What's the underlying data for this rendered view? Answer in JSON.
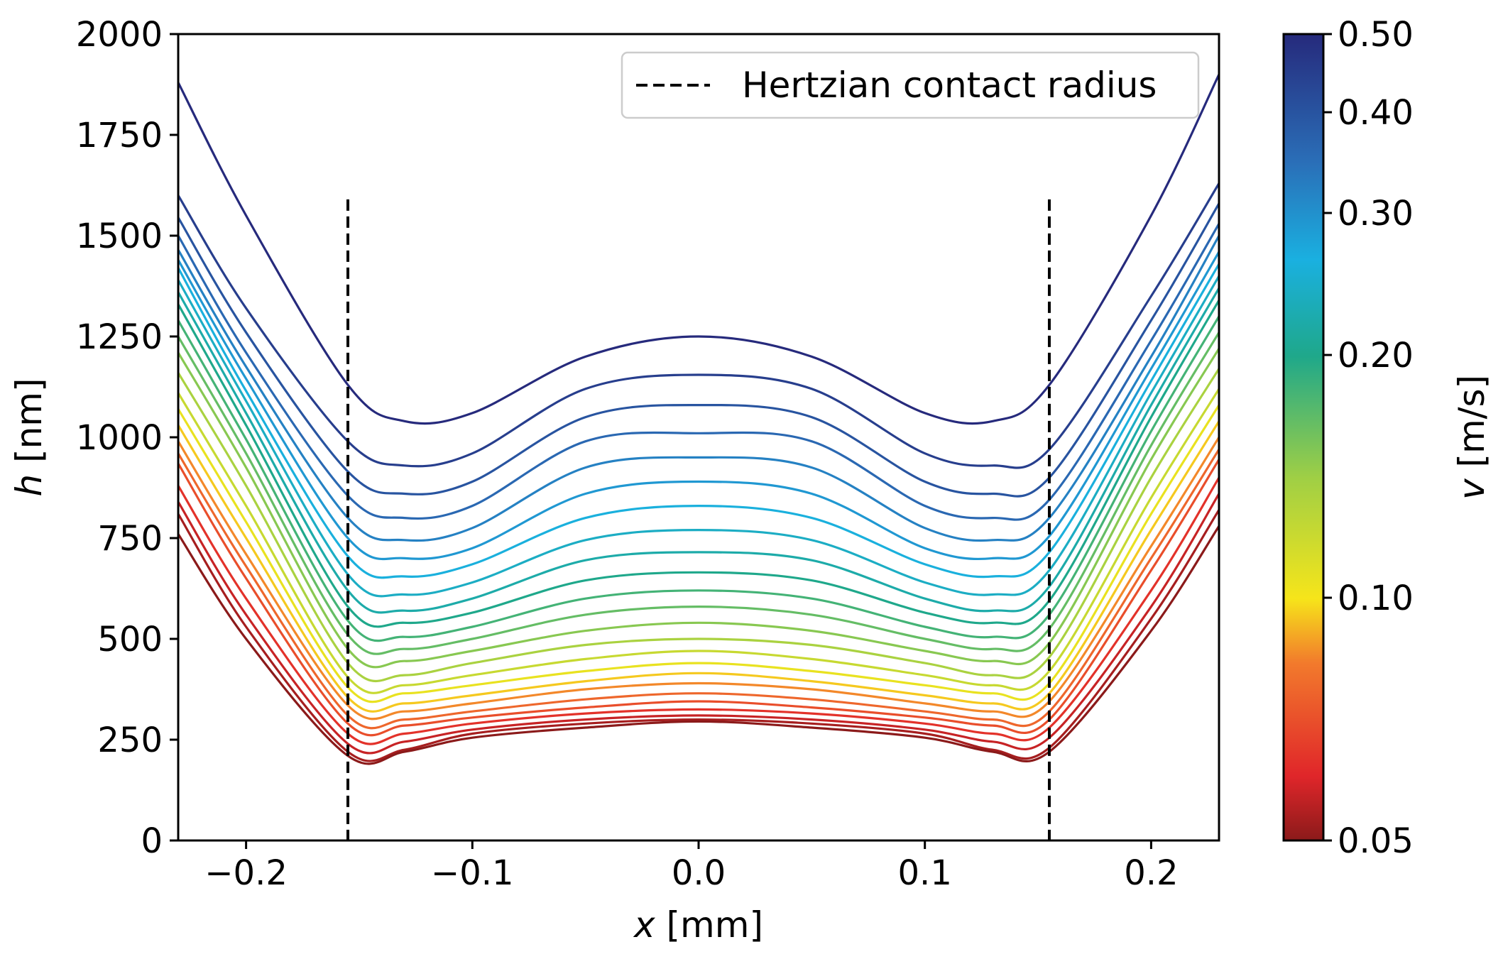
{
  "chart_data": {
    "type": "line",
    "xlabel_var": "x",
    "xlabel_unit": " [mm]",
    "ylabel_var": "h",
    "ylabel_unit": " [nm]",
    "xlim": [
      -0.23,
      0.23
    ],
    "ylim": [
      0,
      2000
    ],
    "x_ticks": [
      -0.2,
      -0.1,
      0.0,
      0.1,
      0.2
    ],
    "x_tick_labels": [
      "−0.2",
      "−0.1",
      "0.0",
      "0.1",
      "0.2"
    ],
    "y_ticks": [
      0,
      250,
      500,
      750,
      1000,
      1250,
      1500,
      1750,
      2000
    ],
    "y_tick_labels": [
      "0",
      "250",
      "500",
      "750",
      "1000",
      "1250",
      "1500",
      "1750",
      "2000"
    ],
    "legend": {
      "entry": "Hertzian contact radius",
      "style": "dashed",
      "position": "top-right"
    },
    "hertzian_radius_x": [
      -0.155,
      0.155
    ],
    "hertzian_line_top": 1590,
    "colorbar": {
      "label_var": "v",
      "label_unit": " [m/s]",
      "scale": "log",
      "range": [
        0.05,
        0.5
      ],
      "ticks": [
        0.05,
        0.1,
        0.2,
        0.3,
        0.4,
        0.5
      ],
      "tick_labels": [
        "0.05",
        "0.10",
        "0.20",
        "0.30",
        "0.40",
        "0.50"
      ],
      "colormap": "jet-like (red = low v, dark blue = high v)"
    },
    "series_profile_x": [
      -0.23,
      -0.2,
      -0.155,
      -0.13,
      -0.1,
      -0.05,
      0.0,
      0.05,
      0.1,
      0.13,
      0.155,
      0.2,
      0.23
    ],
    "series": [
      {
        "v": 0.5,
        "values": [
          1880,
          1550,
          1130,
          1040,
          1060,
          1200,
          1250,
          1200,
          1060,
          1040,
          1130,
          1550,
          1900
        ]
      },
      {
        "v": 0.45,
        "values": [
          1600,
          1320,
          990,
          930,
          960,
          1120,
          1155,
          1120,
          960,
          930,
          970,
          1350,
          1630
        ]
      },
      {
        "v": 0.4,
        "values": [
          1545,
          1260,
          915,
          860,
          890,
          1050,
          1080,
          1050,
          890,
          860,
          900,
          1290,
          1580
        ]
      },
      {
        "v": 0.36,
        "values": [
          1500,
          1210,
          855,
          800,
          830,
          990,
          1010,
          990,
          830,
          800,
          845,
          1240,
          1530
        ]
      },
      {
        "v": 0.32,
        "values": [
          1465,
          1175,
          800,
          745,
          775,
          925,
          950,
          925,
          775,
          745,
          800,
          1200,
          1500
        ]
      },
      {
        "v": 0.29,
        "values": [
          1440,
          1145,
          750,
          700,
          725,
          860,
          890,
          860,
          725,
          700,
          755,
          1170,
          1460
        ]
      },
      {
        "v": 0.26,
        "values": [
          1420,
          1115,
          705,
          655,
          685,
          800,
          830,
          800,
          685,
          655,
          715,
          1140,
          1430
        ]
      },
      {
        "v": 0.24,
        "values": [
          1390,
          1090,
          660,
          610,
          640,
          745,
          770,
          745,
          640,
          610,
          670,
          1110,
          1400
        ]
      },
      {
        "v": 0.22,
        "values": [
          1360,
          1060,
          620,
          570,
          600,
          695,
          715,
          695,
          600,
          570,
          630,
          1080,
          1370
        ]
      },
      {
        "v": 0.2,
        "values": [
          1330,
          1030,
          580,
          540,
          565,
          645,
          665,
          645,
          565,
          540,
          595,
          1050,
          1340
        ]
      },
      {
        "v": 0.18,
        "values": [
          1290,
          995,
          545,
          505,
          530,
          600,
          620,
          600,
          530,
          505,
          560,
          1015,
          1300
        ]
      },
      {
        "v": 0.165,
        "values": [
          1250,
          960,
          510,
          475,
          500,
          560,
          580,
          560,
          500,
          475,
          525,
          980,
          1260
        ]
      },
      {
        "v": 0.15,
        "values": [
          1210,
          925,
          475,
          445,
          470,
          520,
          540,
          520,
          470,
          445,
          490,
          945,
          1220
        ]
      },
      {
        "v": 0.135,
        "values": [
          1160,
          880,
          440,
          410,
          440,
          485,
          500,
          485,
          440,
          410,
          455,
          900,
          1170
        ]
      },
      {
        "v": 0.12,
        "values": [
          1110,
          830,
          405,
          385,
          410,
          450,
          470,
          450,
          410,
          385,
          420,
          850,
          1120
        ]
      },
      {
        "v": 0.105,
        "values": [
          1070,
          790,
          380,
          365,
          385,
          420,
          440,
          420,
          385,
          365,
          390,
          810,
          1080
        ]
      },
      {
        "v": 0.095,
        "values": [
          1030,
          750,
          355,
          340,
          360,
          395,
          415,
          395,
          360,
          340,
          365,
          770,
          1040
        ]
      },
      {
        "v": 0.085,
        "values": [
          990,
          710,
          335,
          320,
          340,
          375,
          390,
          375,
          340,
          320,
          345,
          730,
          1000
        ]
      },
      {
        "v": 0.077,
        "values": [
          960,
          680,
          310,
          300,
          320,
          350,
          365,
          350,
          320,
          300,
          320,
          700,
          970
        ]
      },
      {
        "v": 0.07,
        "values": [
          935,
          650,
          290,
          285,
          305,
          330,
          345,
          330,
          305,
          285,
          300,
          670,
          945
        ]
      },
      {
        "v": 0.063,
        "values": [
          880,
          600,
          265,
          265,
          290,
          315,
          325,
          315,
          290,
          265,
          280,
          620,
          900
        ]
      },
      {
        "v": 0.057,
        "values": [
          840,
          560,
          240,
          245,
          275,
          300,
          310,
          300,
          275,
          245,
          255,
          580,
          860
        ]
      },
      {
        "v": 0.053,
        "values": [
          810,
          530,
          220,
          225,
          265,
          290,
          300,
          290,
          265,
          225,
          230,
          550,
          820
        ]
      },
      {
        "v": 0.05,
        "values": [
          760,
          500,
          210,
          220,
          255,
          280,
          295,
          280,
          255,
          220,
          220,
          520,
          780
        ]
      }
    ]
  }
}
